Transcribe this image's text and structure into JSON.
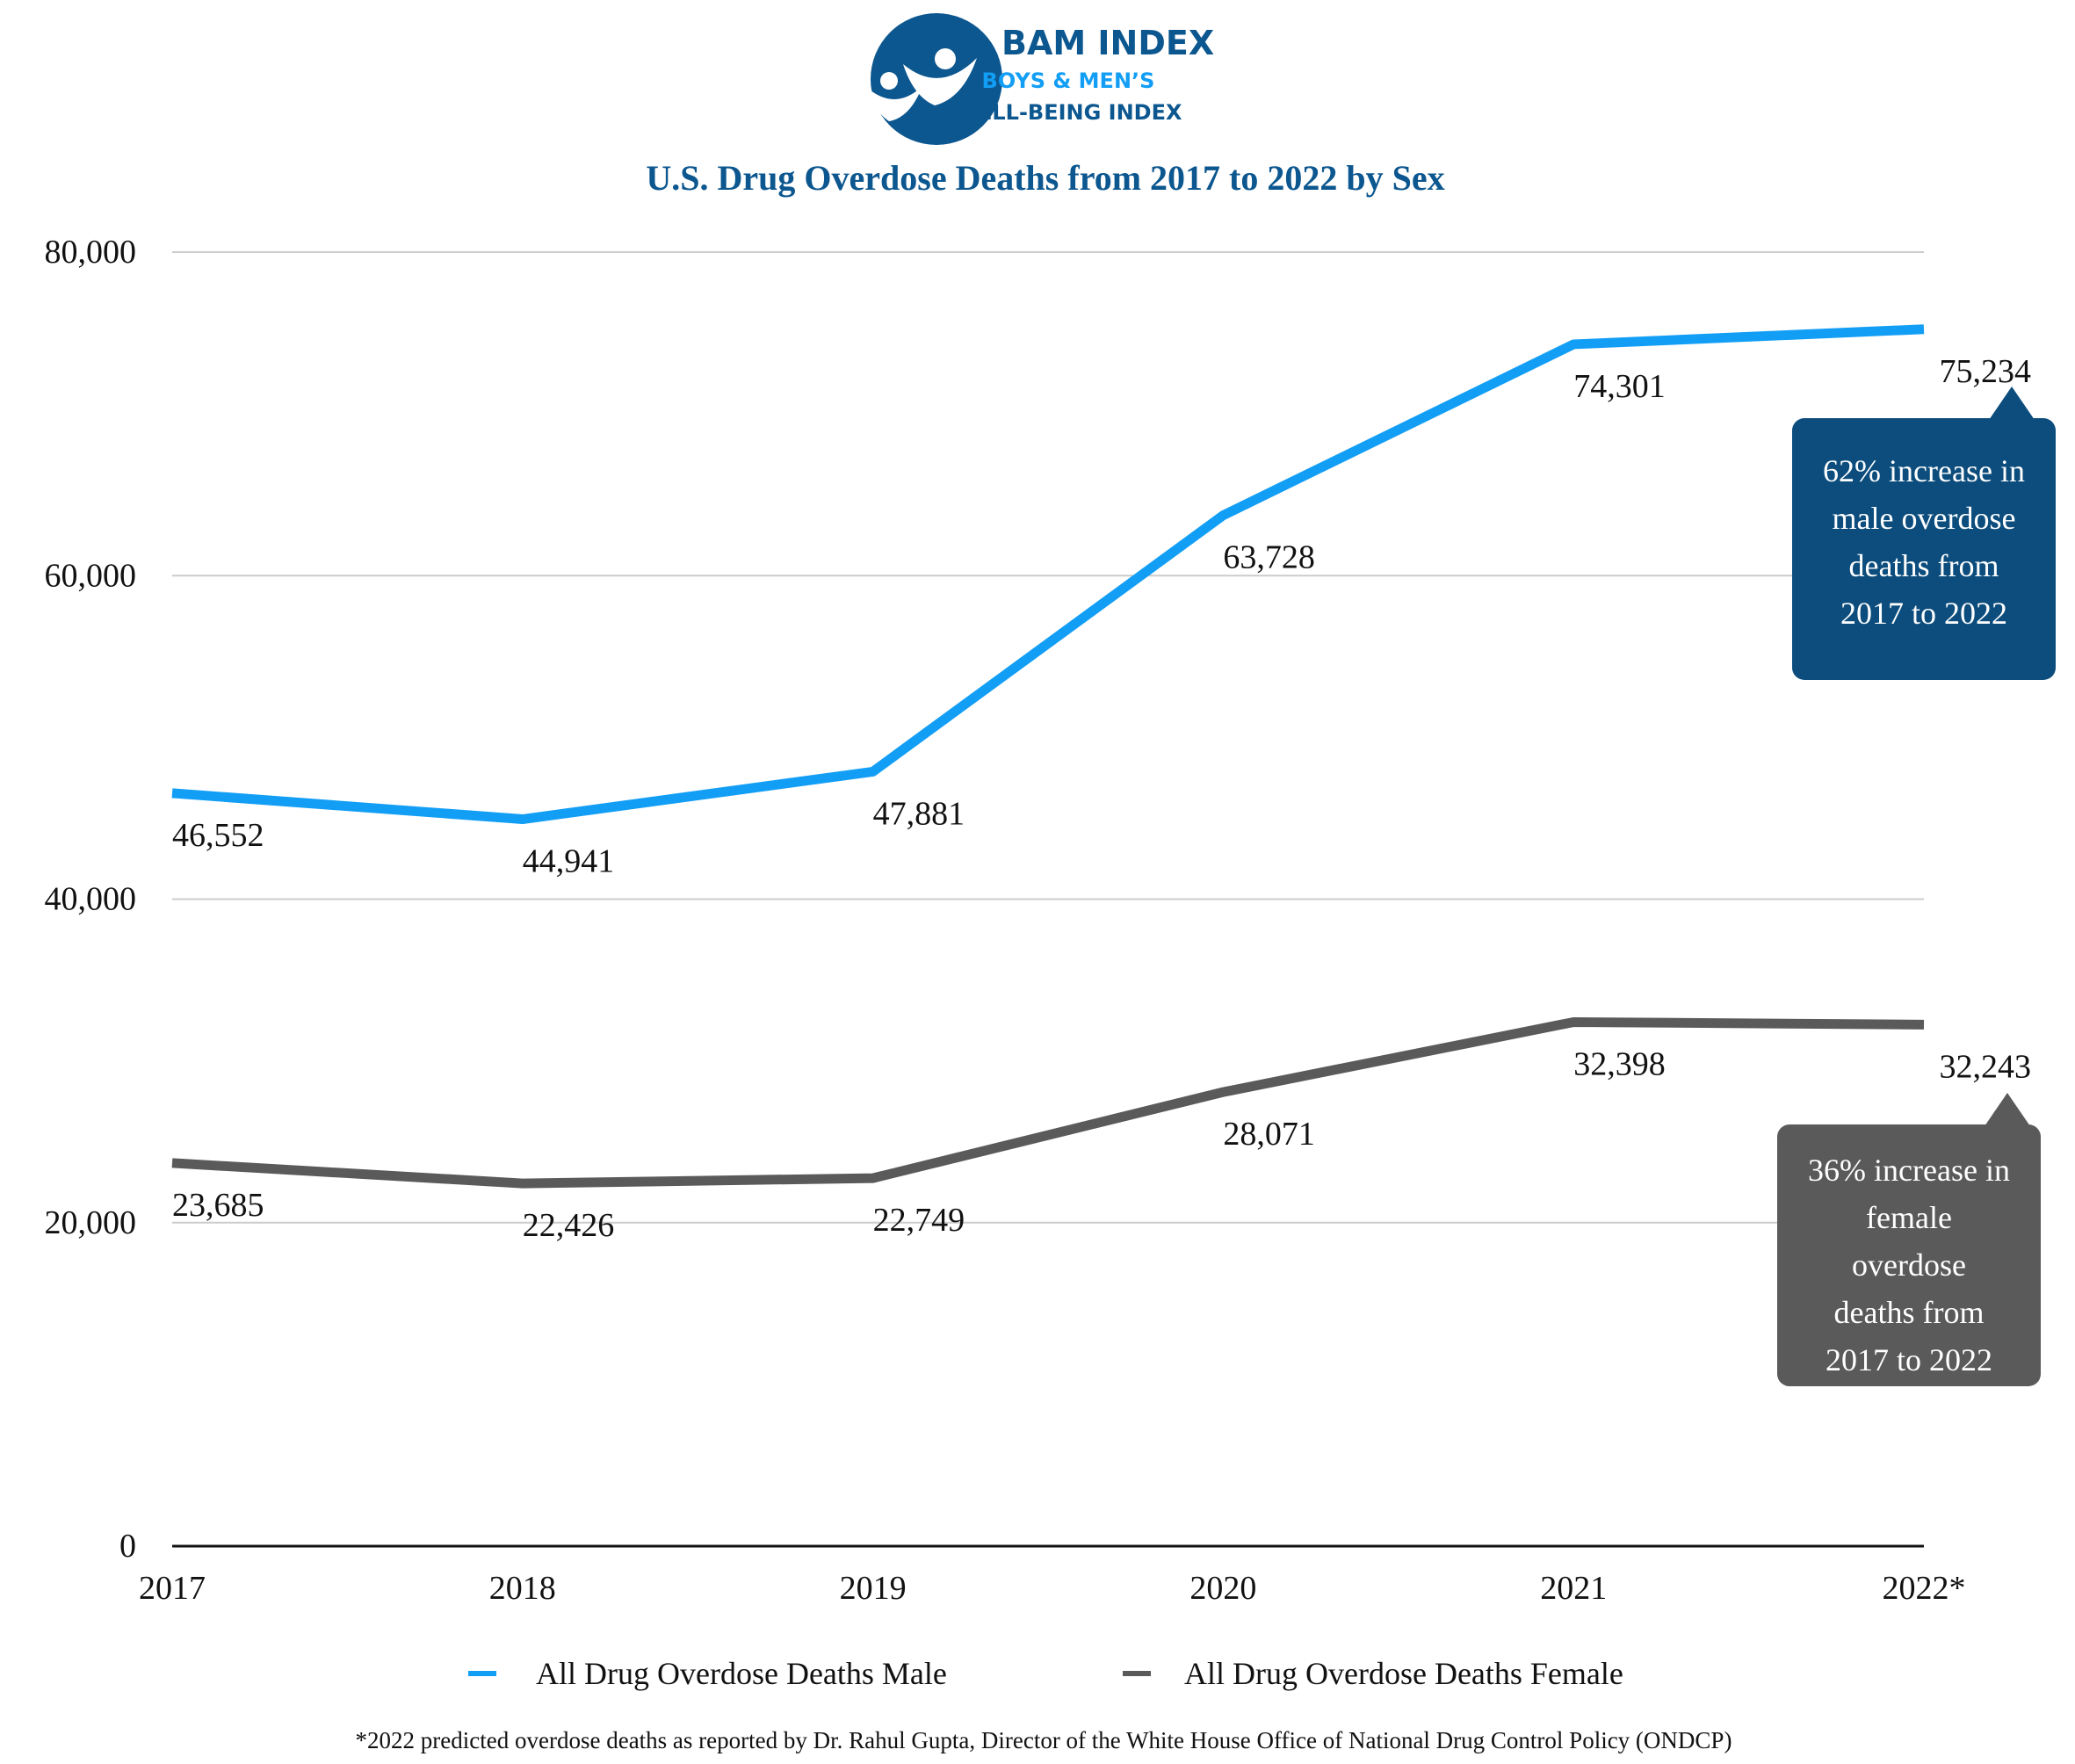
{
  "logo": {
    "name": "BAM INDEX",
    "line1": "BOYS & MEN’S",
    "line2": "WELL-BEING INDEX"
  },
  "colors": {
    "male": "#139ef5",
    "female": "#5a5a5a",
    "brand": "#0c578f",
    "male_callout": "#0c4d7d",
    "female_callout": "#5a5a5a",
    "grid": "#cccccc"
  },
  "chart_data": {
    "type": "line",
    "title": "U.S. Drug Overdose Deaths from 2017 to 2022 by Sex",
    "categories": [
      "2017",
      "2018",
      "2019",
      "2020",
      "2021",
      "2022*"
    ],
    "ylim": [
      0,
      80000
    ],
    "yticks": [
      0,
      20000,
      40000,
      60000,
      80000
    ],
    "ytick_labels": [
      "0",
      "20,000",
      "40,000",
      "60,000",
      "80,000"
    ],
    "grid": true,
    "legend_position": "bottom",
    "series": [
      {
        "name": "All Drug Overdose Deaths Male",
        "values": [
          46552,
          44941,
          47881,
          63728,
          74301,
          75234
        ],
        "labels": [
          "46,552",
          "44,941",
          "47,881",
          "63,728",
          "74,301",
          "75,234"
        ]
      },
      {
        "name": "All Drug Overdose Deaths Female",
        "values": [
          23685,
          22426,
          22749,
          28071,
          32398,
          32243
        ],
        "labels": [
          "23,685",
          "22,426",
          "22,749",
          "28,071",
          "32,398",
          "32,243"
        ]
      }
    ],
    "annotations": [
      {
        "series": 0,
        "lines": [
          "62% increase in",
          "male overdose",
          "deaths from",
          "2017 to 2022"
        ]
      },
      {
        "series": 1,
        "lines": [
          "36% increase in",
          "female",
          "overdose",
          "deaths from",
          "2017 to 2022"
        ]
      }
    ]
  },
  "footnote": "*2022 predicted overdose deaths as reported by Dr. Rahul Gupta, Director of the White House Office of National Drug Control Policy (ONDCP)"
}
